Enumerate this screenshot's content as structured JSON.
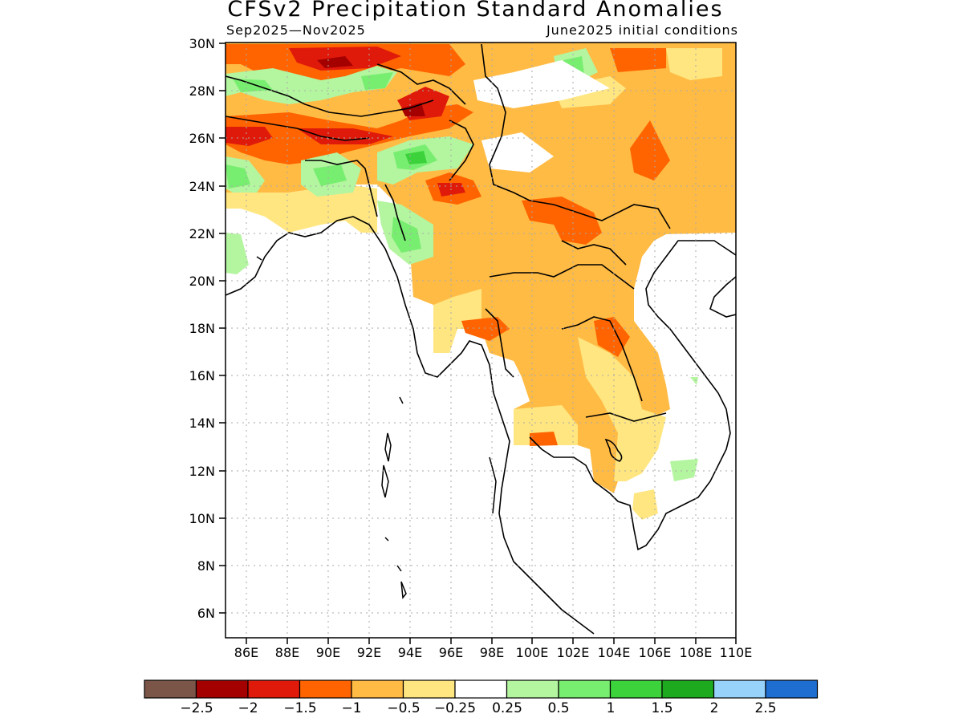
{
  "title": "CFSv2 Precipitation Standard Anomalies",
  "subtitle_left": "Sep2025—Nov2025",
  "subtitle_right": "June2025 initial conditions",
  "lat_labels": [
    "30N",
    "28N",
    "26N",
    "24N",
    "22N",
    "20N",
    "18N",
    "16N",
    "14N",
    "12N",
    "10N",
    "8N",
    "6N"
  ],
  "lon_labels": [
    "86E",
    "88E",
    "90E",
    "92E",
    "94E",
    "96E",
    "98E",
    "100E",
    "102E",
    "104E",
    "106E",
    "108E",
    "110E"
  ],
  "colorbar": {
    "colors": [
      "#7a5548",
      "#a50000",
      "#e01a0a",
      "#ff6400",
      "#ffbb44",
      "#ffe680",
      "#ffffff",
      "#b4f5a0",
      "#78ee70",
      "#3cd23c",
      "#1eaa1e",
      "#96d2fa",
      "#1e6ed2"
    ],
    "labels": [
      "−2.5",
      "−2",
      "−1.5",
      "−1",
      "−0.5",
      "−0.25",
      "0.25",
      "0.5",
      "1",
      "1.5",
      "2",
      "2.5"
    ]
  }
}
